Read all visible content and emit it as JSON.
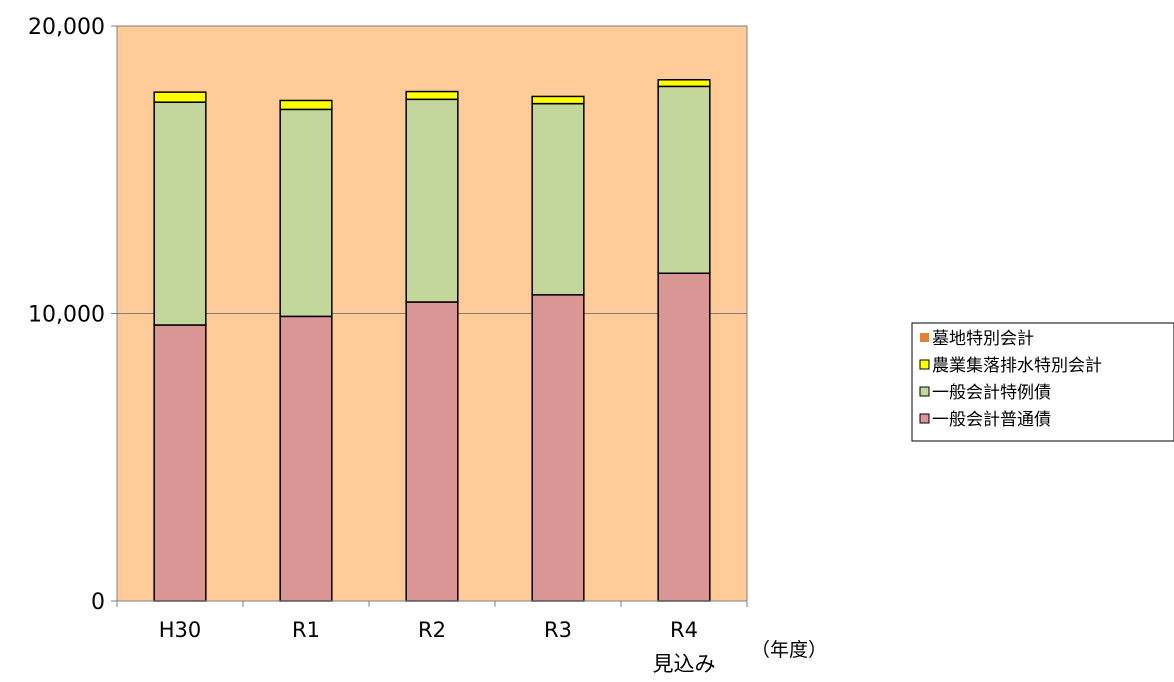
{
  "chart_data": {
    "type": "bar",
    "stacked": true,
    "categories": [
      "H30",
      "R1",
      "R2",
      "R3",
      "R4"
    ],
    "category_sublabels": [
      "",
      "",
      "",
      "",
      "見込み"
    ],
    "xlabel": "（年度）",
    "ylabel": "",
    "ylim": [
      0,
      20000
    ],
    "yticks": [
      0,
      10000,
      20000
    ],
    "ytick_labels": [
      "0",
      "10,000",
      "20,000"
    ],
    "grid": true,
    "legend_position": "right",
    "plot_background": "#FFCC99",
    "series": [
      {
        "name": "一般会計普通債",
        "color": "#D99694",
        "values": [
          9600,
          9900,
          10400,
          10650,
          11400
        ]
      },
      {
        "name": "一般会計特例債",
        "color": "#C3D69B",
        "values": [
          7750,
          7200,
          7050,
          6650,
          6500
        ]
      },
      {
        "name": "農業集落排水特別会計",
        "color": "#FFFF00",
        "values": [
          350,
          310,
          270,
          250,
          230
        ]
      },
      {
        "name": "墓地特別会計",
        "color": "#E0803A",
        "values": [
          0,
          0,
          0,
          0,
          0
        ]
      }
    ],
    "legend_order": [
      "墓地特別会計",
      "農業集落排水特別会計",
      "一般会計特例債",
      "一般会計普通債"
    ]
  }
}
